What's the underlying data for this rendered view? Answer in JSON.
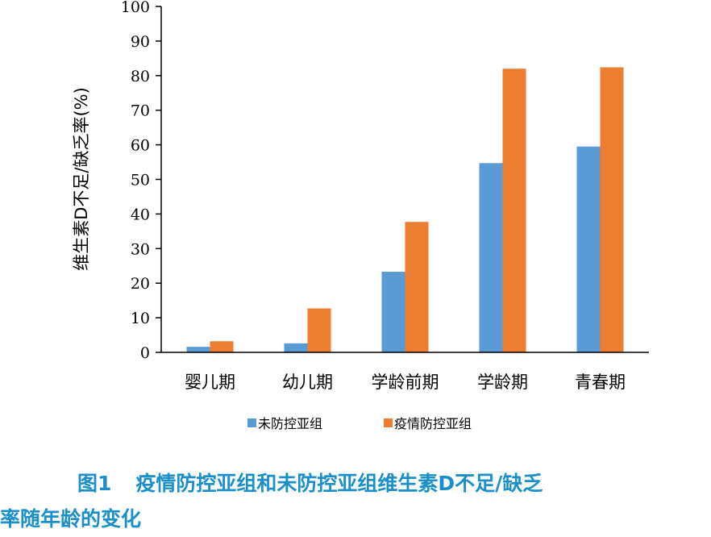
{
  "chart_data": {
    "type": "bar",
    "categories": [
      "婴儿期",
      "幼儿期",
      "学龄前期",
      "学龄期",
      "青春期"
    ],
    "series": [
      {
        "name": "未防控亚组",
        "color": "#5b9bd5",
        "values": [
          1.6,
          2.6,
          23.3,
          54.7,
          59.5
        ]
      },
      {
        "name": "疫情防控亚组",
        "color": "#ed7d31",
        "values": [
          3.2,
          12.7,
          37.7,
          82.0,
          82.4
        ]
      }
    ],
    "ylabel": "维生素D不足/缺乏率(%)",
    "xlabel": "",
    "ylim": [
      0,
      100
    ],
    "yticks": [
      0,
      10,
      20,
      30,
      40,
      50,
      60,
      70,
      80,
      90,
      100
    ],
    "grid": false,
    "legend_position": "bottom"
  },
  "caption": {
    "figure_label": "图1",
    "line1": "疫情防控亚组和未防控亚组维生素D不足/缺乏",
    "line2": "率随年龄的变化",
    "color": "#1a8fc9"
  }
}
